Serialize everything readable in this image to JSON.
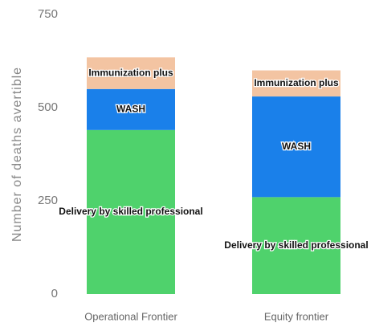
{
  "chart_data": {
    "type": "stacked_bar",
    "y_label": "Number of deaths avertible",
    "categories": [
      "Operational Frontier",
      "Equity frontier"
    ],
    "series": [
      {
        "name": "Delivery by skilled professional",
        "color": "#4fd26c",
        "values": [
          440,
          260
        ]
      },
      {
        "name": "WASH",
        "color": "#1a80ea",
        "values": [
          110,
          270
        ]
      },
      {
        "name": "Immunization plus",
        "color": "#f3c4a2",
        "values": [
          85,
          70
        ]
      }
    ],
    "ylim": [
      0,
      750
    ],
    "yticks": [
      0,
      250,
      500,
      750
    ]
  }
}
